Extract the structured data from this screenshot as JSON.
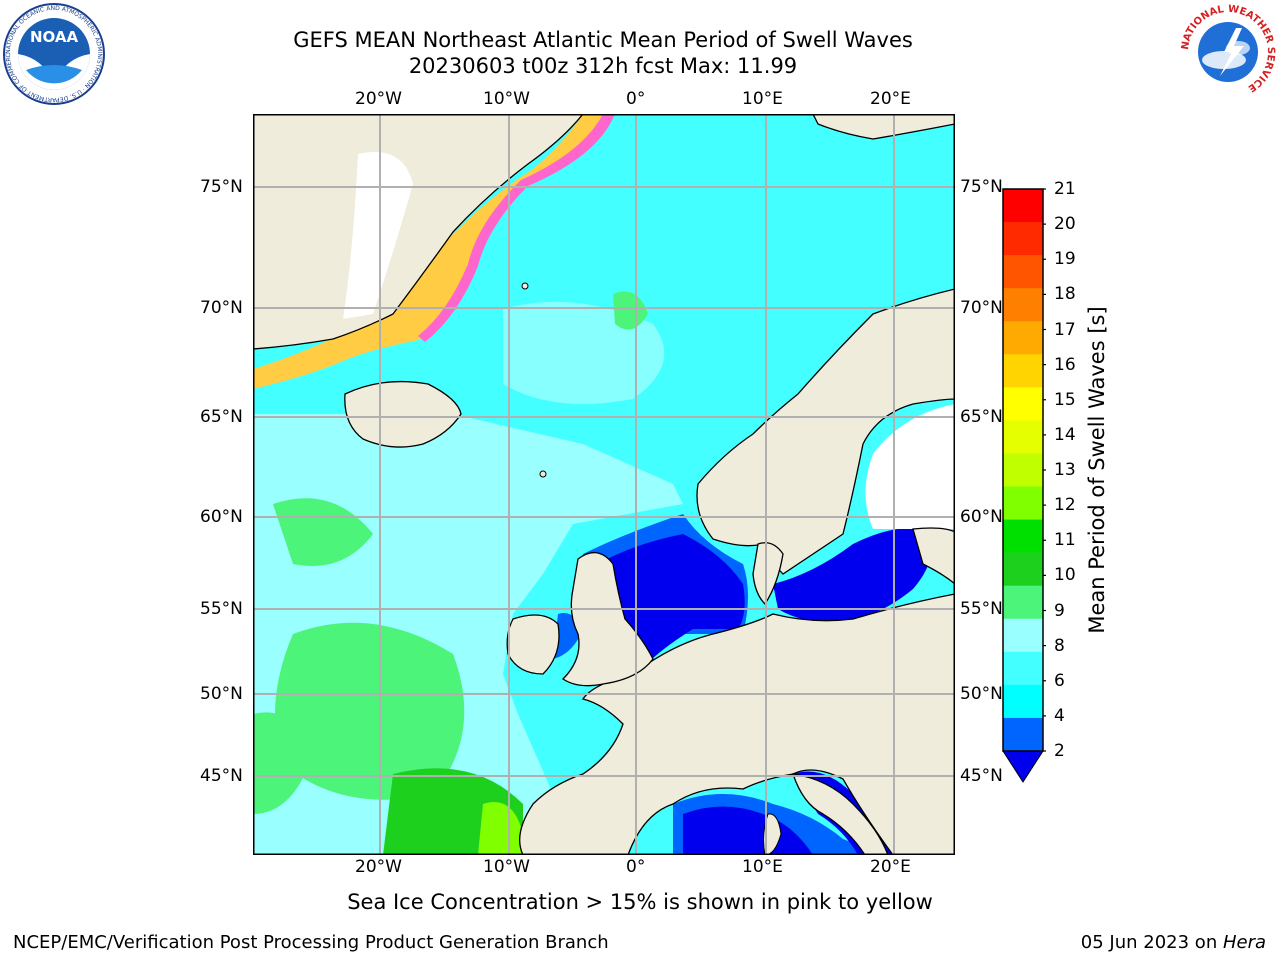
{
  "header": {
    "title_line1": "GEFS MEAN Northeast Atlantic Mean Period of Swell Waves",
    "title_line2": "20230603 t00z 312h fcst   Max: 11.99"
  },
  "logos": {
    "noaa_text": "NOAA",
    "noaa_ring_text": "NATIONAL OCEANIC AND ATMOSPHERIC ADMINISTRATION · U.S. DEPARTMENT OF COMMERCE",
    "nws_ring_text": "NATIONAL WEATHER SERVICE"
  },
  "map": {
    "lon_labels": [
      "20°W",
      "10°W",
      "0°",
      "10°E",
      "20°E"
    ],
    "lat_labels": [
      "75°N",
      "70°N",
      "65°N",
      "60°N",
      "55°N",
      "50°N",
      "45°N"
    ],
    "land_color": "#efecdc",
    "ocean_colors": {
      "4-6": "#00ffff",
      "6-8": "#44ffff",
      "8-9": "#99ffff",
      "9-10": "#4cf57a",
      "10-11": "#00e000",
      "2-4": "#0064ff",
      "below-2": "#0000ee"
    }
  },
  "colorbar": {
    "label": "Mean Period of Swell Waves [s]",
    "ticks": [
      "21",
      "20",
      "19",
      "18",
      "17",
      "16",
      "15",
      "14",
      "13",
      "12",
      "11",
      "10",
      "9",
      "8",
      "6",
      "4",
      "2"
    ],
    "colors": [
      "#ff0000",
      "#ff2a00",
      "#ff5500",
      "#ff8000",
      "#ffaa00",
      "#ffd400",
      "#ffff00",
      "#e6ff00",
      "#bfff00",
      "#7fff00",
      "#00e000",
      "#1ed01e",
      "#4cf57a",
      "#99ffff",
      "#44ffff",
      "#00ffff",
      "#0064ff"
    ],
    "extend_color": "#0000ee"
  },
  "footer": {
    "note": "Sea Ice Concentration > 15% is shown in pink to yellow",
    "credit": "NCEP/EMC/Verification Post Processing Product Generation Branch",
    "date_prefix": "05 Jun 2023 on ",
    "host": "Hera"
  }
}
